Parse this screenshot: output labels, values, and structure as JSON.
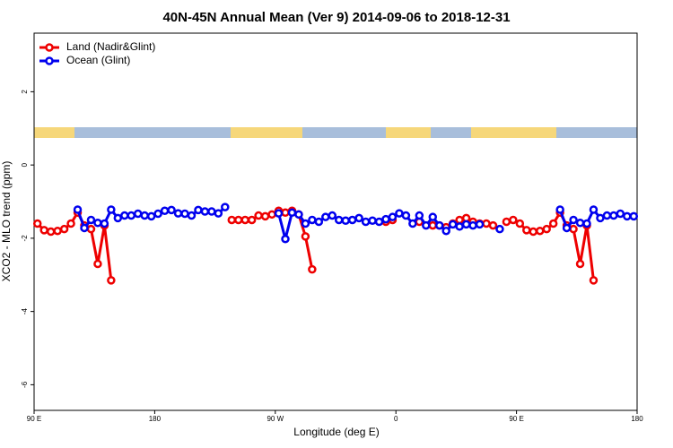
{
  "chart_data": {
    "type": "line",
    "title": "40N-45N Annual Mean (Ver 9)   2014-09-06 to 2018-12-31",
    "x_label": "Longitude (deg E)",
    "y_label": "XCO2 - MLO trend (ppm)",
    "xlim": [
      90,
      540
    ],
    "ylim": [
      -6.7,
      3.6
    ],
    "xticks": [
      {
        "value": 90,
        "label": "90 E"
      },
      180,
      {
        "value": 270,
        "label": "90 W"
      },
      {
        "value": 360,
        "label": "0"
      },
      {
        "value": 450,
        "label": "90 E"
      },
      {
        "value": 540,
        "label": "180"
      }
    ],
    "yticks": [
      -6,
      -4,
      -2,
      0,
      2
    ],
    "legend": "topleft",
    "x": [
      92.5,
      97.5,
      102.5,
      107.5,
      112.5,
      117.5,
      122.5,
      127.5,
      132.5,
      137.5,
      142.5,
      147.5,
      152.5,
      157.5,
      162.5,
      167.5,
      172.5,
      177.5,
      182.5,
      187.5,
      192.5,
      197.5,
      202.5,
      207.5,
      212.5,
      217.5,
      222.5,
      227.5,
      232.5,
      237.5,
      242.5,
      247.5,
      252.5,
      257.5,
      262.5,
      267.5,
      272.5,
      277.5,
      282.5,
      287.5,
      292.5,
      297.5,
      302.5,
      307.5,
      312.5,
      317.5,
      322.5,
      327.5,
      332.5,
      337.5,
      342.5,
      347.5,
      352.5,
      357.5,
      362.5,
      367.5,
      372.5,
      377.5,
      382.5,
      387.5,
      392.5,
      397.5,
      402.5,
      407.5,
      412.5,
      417.5,
      422.5,
      427.5,
      432.5,
      437.5,
      442.5,
      447.5,
      452.5,
      457.5,
      462.5,
      467.5,
      472.5,
      477.5,
      482.5,
      487.5,
      492.5,
      497.5,
      502.5,
      507.5,
      512.5,
      517.5,
      522.5,
      527.5,
      532.5,
      537.5
    ],
    "series": [
      {
        "name": "Land (Nadir&Glint)",
        "color": "#ee0000",
        "values": [
          -1.6,
          -1.78,
          -1.82,
          -1.8,
          -1.75,
          -1.6,
          -1.3,
          -1.65,
          -1.75,
          -2.7,
          -1.65,
          -3.15,
          null,
          null,
          null,
          null,
          null,
          null,
          null,
          null,
          null,
          null,
          null,
          null,
          null,
          null,
          null,
          null,
          null,
          -1.5,
          -1.5,
          -1.5,
          -1.5,
          -1.38,
          -1.4,
          -1.35,
          -1.25,
          -1.3,
          -1.25,
          -1.35,
          -1.95,
          -2.85,
          null,
          null,
          null,
          null,
          null,
          null,
          null,
          null,
          null,
          null,
          -1.55,
          -1.5,
          null,
          null,
          null,
          -1.55,
          null,
          -1.65,
          -1.65,
          -1.7,
          -1.6,
          -1.5,
          -1.45,
          -1.55,
          -1.6,
          -1.6,
          -1.65,
          null,
          -1.55,
          -1.5,
          -1.6,
          -1.78,
          -1.82,
          -1.8,
          -1.75,
          -1.6,
          -1.3,
          -1.65,
          -1.75,
          -2.7,
          -1.65,
          -3.15,
          null,
          null,
          null,
          null,
          null,
          null
        ]
      },
      {
        "name": "Ocean (Glint)",
        "color": "#0000ee",
        "values": [
          null,
          null,
          null,
          null,
          null,
          null,
          -1.22,
          -1.72,
          -1.5,
          -1.58,
          -1.6,
          -1.22,
          -1.45,
          -1.38,
          -1.38,
          -1.33,
          -1.38,
          -1.4,
          -1.33,
          -1.25,
          -1.23,
          -1.32,
          -1.33,
          -1.38,
          -1.23,
          -1.27,
          -1.27,
          -1.32,
          -1.15,
          null,
          null,
          null,
          null,
          null,
          null,
          null,
          -1.32,
          -2.02,
          -1.3,
          -1.35,
          -1.6,
          -1.5,
          -1.55,
          -1.42,
          -1.38,
          -1.5,
          -1.52,
          -1.5,
          -1.45,
          -1.55,
          -1.52,
          -1.55,
          -1.48,
          -1.42,
          -1.32,
          -1.38,
          -1.6,
          -1.38,
          -1.65,
          -1.42,
          -1.65,
          -1.8,
          -1.62,
          -1.68,
          -1.62,
          -1.65,
          -1.62,
          null,
          null,
          -1.75,
          null,
          null,
          null,
          null,
          null,
          null,
          null,
          null,
          -1.22,
          -1.72,
          -1.5,
          -1.58,
          -1.6,
          -1.22,
          -1.45,
          -1.38,
          -1.38,
          -1.33,
          -1.4,
          -1.4
        ]
      }
    ]
  }
}
